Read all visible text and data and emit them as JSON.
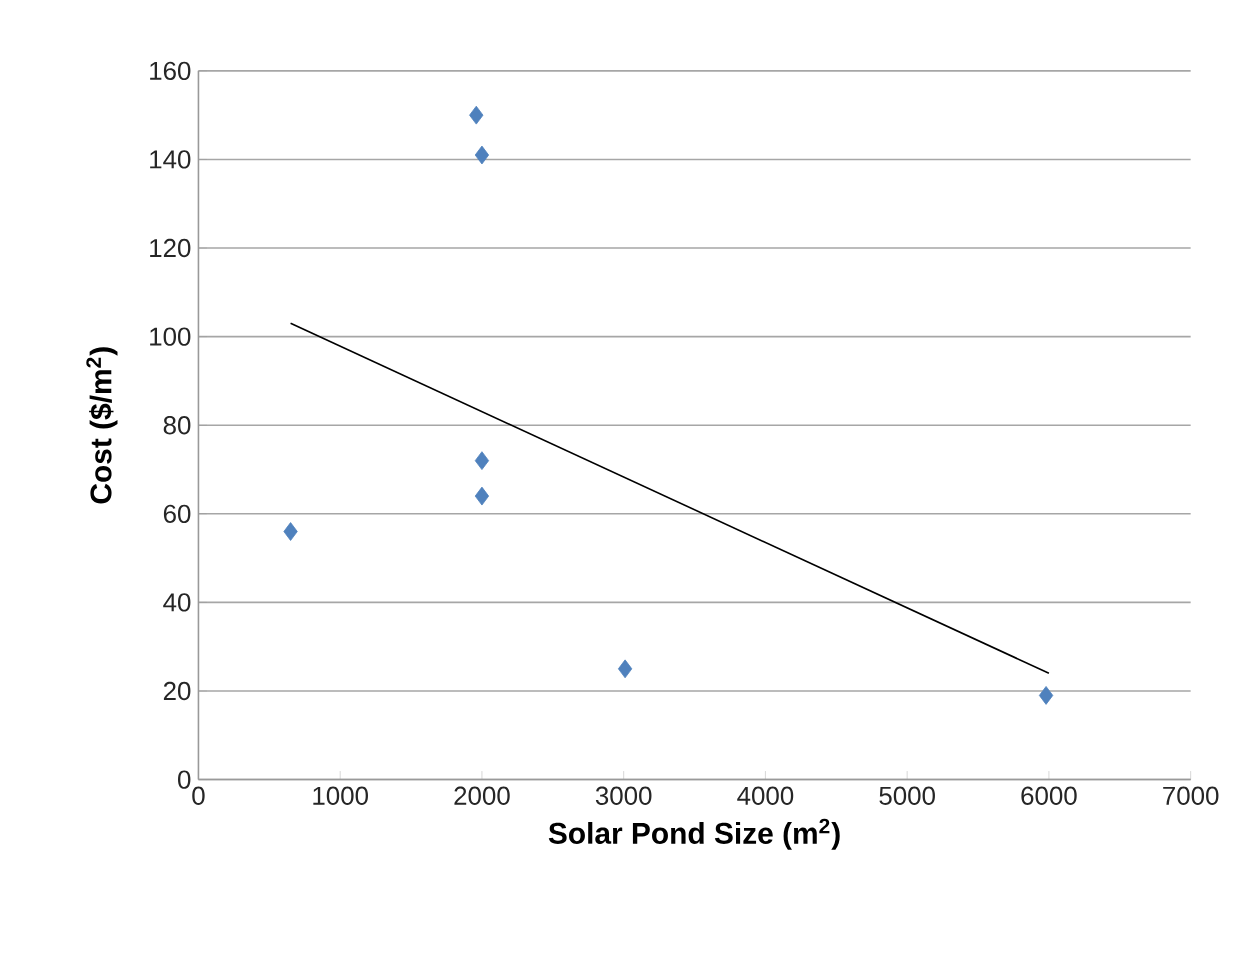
{
  "chart_data": {
    "type": "scatter",
    "xlabel": "Solar Pond Size (m$^{2}$)",
    "ylabel": "Cost ($/m$^{2}$)",
    "xlim": [
      0,
      7000
    ],
    "ylim": [
      0,
      160
    ],
    "xticks": [
      0,
      1000,
      2000,
      3000,
      4000,
      5000,
      6000,
      7000
    ],
    "yticks": [
      0,
      20,
      40,
      60,
      80,
      100,
      120,
      140,
      160
    ],
    "grid": "y",
    "marker": "diamond",
    "series": [
      {
        "color": "#4f81bd",
        "x": [
          650,
          1960,
          2000,
          2000,
          2000,
          3010,
          5980
        ],
        "values": [
          56,
          150,
          141,
          72,
          64,
          25,
          19
        ]
      },
      {
        "type": "line",
        "color": "#000000",
        "marker": "none",
        "x": [
          650,
          6000
        ],
        "values": [
          103,
          24
        ]
      }
    ]
  }
}
